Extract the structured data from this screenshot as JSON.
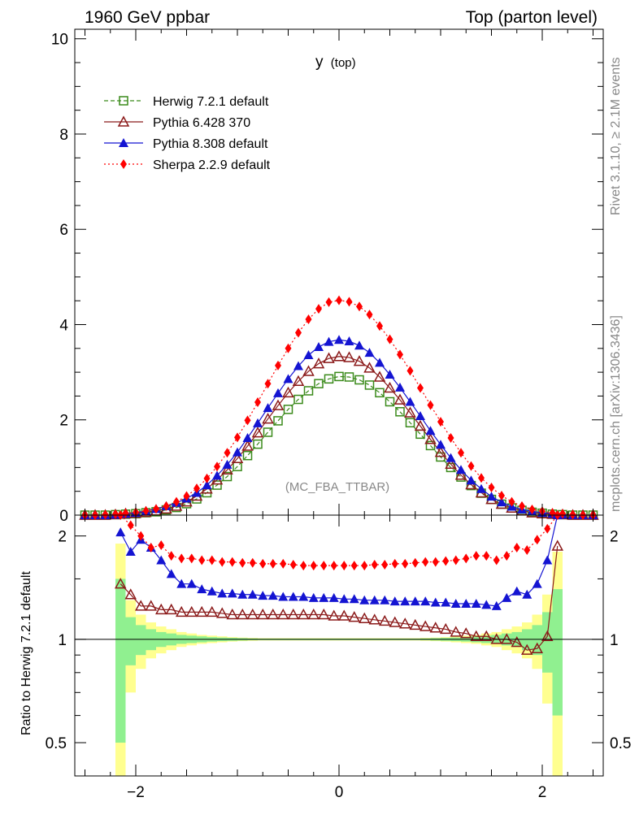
{
  "header": {
    "left": "1960 GeV ppbar",
    "right": "Top (parton level)"
  },
  "side_labels": {
    "rivet": "Rivet 3.1.10, ≥ 2.1M events",
    "mcplots": "mcplots.cern.ch [arXiv:1306.3436]"
  },
  "plot_title": {
    "main": "y",
    "sub": "(top)"
  },
  "analysis_label": "(MC_FBA_TTBAR)",
  "ratio_ylabel": "Ratio to Herwig 7.2.1 default",
  "chart_data": [
    {
      "type": "line",
      "panel": "main",
      "title": "y (top)",
      "xlim": [
        -2.6,
        2.6
      ],
      "ylim": [
        0,
        10.2
      ],
      "xticks": [
        -2,
        0,
        2
      ],
      "yticks": [
        0,
        2,
        4,
        6,
        8,
        10
      ],
      "ytick_labels": [
        "0",
        "2",
        "4",
        "6",
        "8",
        "10"
      ],
      "legend_position": "top-left",
      "x": [
        -2.5,
        -2.4,
        -2.3,
        -2.2,
        -2.1,
        -2.0,
        -1.9,
        -1.8,
        -1.7,
        -1.6,
        -1.5,
        -1.4,
        -1.3,
        -1.2,
        -1.1,
        -1.0,
        -0.9,
        -0.8,
        -0.7,
        -0.6,
        -0.5,
        -0.4,
        -0.3,
        -0.2,
        -0.1,
        0.0,
        0.1,
        0.2,
        0.3,
        0.4,
        0.5,
        0.6,
        0.7,
        0.8,
        0.9,
        1.0,
        1.1,
        1.2,
        1.3,
        1.4,
        1.5,
        1.6,
        1.7,
        1.8,
        1.9,
        2.0,
        2.1,
        2.2,
        2.3,
        2.4,
        2.5
      ],
      "series": [
        {
          "name": "Herwig 7.2.1 default",
          "color": "#3a8a1a",
          "marker": "open-square",
          "dash": "5,3",
          "values": [
            0.0,
            0.0,
            0.0,
            0.01,
            0.02,
            0.03,
            0.05,
            0.07,
            0.11,
            0.16,
            0.24,
            0.34,
            0.47,
            0.63,
            0.81,
            1.02,
            1.25,
            1.49,
            1.74,
            1.98,
            2.22,
            2.43,
            2.61,
            2.76,
            2.86,
            2.91,
            2.9,
            2.84,
            2.73,
            2.57,
            2.38,
            2.17,
            1.94,
            1.7,
            1.46,
            1.22,
            1.0,
            0.8,
            0.62,
            0.46,
            0.33,
            0.23,
            0.15,
            0.1,
            0.06,
            0.04,
            0.02,
            0.01,
            0.0,
            0.0,
            0.0
          ]
        },
        {
          "name": "Pythia 6.428 370",
          "color": "#8b1a1a",
          "marker": "open-triangle",
          "dash": "",
          "values": [
            0.0,
            0.0,
            0.0,
            0.01,
            0.03,
            0.04,
            0.06,
            0.09,
            0.13,
            0.19,
            0.28,
            0.4,
            0.55,
            0.74,
            0.95,
            1.19,
            1.45,
            1.73,
            2.02,
            2.3,
            2.57,
            2.81,
            3.02,
            3.18,
            3.29,
            3.33,
            3.31,
            3.23,
            3.09,
            2.9,
            2.67,
            2.42,
            2.15,
            1.87,
            1.59,
            1.32,
            1.07,
            0.84,
            0.64,
            0.47,
            0.33,
            0.23,
            0.15,
            0.09,
            0.05,
            0.03,
            0.02,
            0.01,
            0.0,
            0.0,
            0.0
          ]
        },
        {
          "name": "Pythia 8.308 default",
          "color": "#1414d2",
          "marker": "filled-triangle",
          "dash": "",
          "values": [
            0.0,
            0.0,
            0.0,
            0.01,
            0.03,
            0.05,
            0.09,
            0.13,
            0.19,
            0.26,
            0.35,
            0.47,
            0.63,
            0.83,
            1.06,
            1.32,
            1.62,
            1.93,
            2.25,
            2.56,
            2.86,
            3.13,
            3.36,
            3.53,
            3.64,
            3.68,
            3.65,
            3.56,
            3.41,
            3.2,
            2.95,
            2.68,
            2.38,
            2.08,
            1.77,
            1.48,
            1.2,
            0.95,
            0.73,
            0.55,
            0.39,
            0.27,
            0.18,
            0.12,
            0.08,
            0.05,
            0.03,
            0.01,
            0.0,
            0.0,
            0.0
          ]
        },
        {
          "name": "Sherpa 2.2.9 default",
          "color": "#ff0000",
          "marker": "filled-diamond",
          "dash": "2,3",
          "values": [
            0.0,
            0.0,
            0.01,
            0.02,
            0.04,
            0.06,
            0.09,
            0.13,
            0.19,
            0.28,
            0.4,
            0.56,
            0.77,
            1.02,
            1.31,
            1.63,
            1.99,
            2.37,
            2.76,
            3.14,
            3.5,
            3.83,
            4.11,
            4.33,
            4.47,
            4.51,
            4.48,
            4.38,
            4.21,
            3.97,
            3.69,
            3.37,
            3.03,
            2.67,
            2.31,
            1.96,
            1.62,
            1.31,
            1.03,
            0.78,
            0.58,
            0.41,
            0.28,
            0.19,
            0.12,
            0.08,
            0.05,
            0.03,
            0.01,
            0.0,
            0.0
          ]
        }
      ]
    },
    {
      "type": "line",
      "panel": "ratio",
      "ylabel": "Ratio to Herwig 7.2.1 default",
      "xlim": [
        -2.6,
        2.6
      ],
      "ylim": [
        0.4,
        2.3
      ],
      "yscale": "log",
      "xticks": [
        -2,
        0,
        2
      ],
      "xtick_labels": [
        "−2",
        "0",
        "2"
      ],
      "yticks": [
        0.5,
        1,
        2
      ],
      "ytick_labels": [
        "0.5",
        "1",
        "2"
      ],
      "reference_line": 1,
      "x": [
        -2.15,
        -2.05,
        -1.95,
        -1.85,
        -1.75,
        -1.65,
        -1.55,
        -1.45,
        -1.35,
        -1.25,
        -1.15,
        -1.05,
        -0.95,
        -0.85,
        -0.75,
        -0.65,
        -0.55,
        -0.45,
        -0.35,
        -0.25,
        -0.15,
        -0.05,
        0.05,
        0.15,
        0.25,
        0.35,
        0.45,
        0.55,
        0.65,
        0.75,
        0.85,
        0.95,
        1.05,
        1.15,
        1.25,
        1.35,
        1.45,
        1.55,
        1.65,
        1.75,
        1.85,
        1.95,
        2.05,
        2.15
      ],
      "series": [
        {
          "name": "Pythia 6.428 370",
          "color": "#8b1a1a",
          "marker": "open-triangle",
          "values": [
            1.45,
            1.35,
            1.25,
            1.25,
            1.22,
            1.22,
            1.2,
            1.2,
            1.2,
            1.2,
            1.19,
            1.18,
            1.18,
            1.18,
            1.18,
            1.18,
            1.18,
            1.18,
            1.18,
            1.18,
            1.18,
            1.17,
            1.17,
            1.16,
            1.15,
            1.14,
            1.13,
            1.12,
            1.11,
            1.1,
            1.09,
            1.08,
            1.07,
            1.05,
            1.04,
            1.02,
            1.02,
            1.0,
            1.0,
            0.98,
            0.93,
            0.94,
            1.02,
            1.87
          ]
        },
        {
          "name": "Pythia 8.308 default",
          "color": "#1414d2",
          "marker": "filled-triangle",
          "values": [
            2.05,
            1.8,
            1.95,
            1.85,
            1.7,
            1.55,
            1.45,
            1.45,
            1.4,
            1.38,
            1.36,
            1.36,
            1.35,
            1.35,
            1.34,
            1.34,
            1.33,
            1.33,
            1.33,
            1.32,
            1.32,
            1.32,
            1.31,
            1.31,
            1.3,
            1.3,
            1.3,
            1.29,
            1.29,
            1.29,
            1.29,
            1.28,
            1.28,
            1.27,
            1.27,
            1.27,
            1.26,
            1.25,
            1.32,
            1.38,
            1.35,
            1.45,
            1.7,
            2.3
          ]
        },
        {
          "name": "Sherpa 2.2.9 default",
          "color": "#ff0000",
          "marker": "filled-diamond",
          "values": [
            2.3,
            2.15,
            2.0,
            1.85,
            1.88,
            1.75,
            1.72,
            1.72,
            1.7,
            1.7,
            1.68,
            1.68,
            1.67,
            1.67,
            1.66,
            1.66,
            1.66,
            1.65,
            1.64,
            1.64,
            1.64,
            1.64,
            1.64,
            1.64,
            1.64,
            1.65,
            1.65,
            1.66,
            1.66,
            1.67,
            1.68,
            1.68,
            1.69,
            1.7,
            1.72,
            1.75,
            1.75,
            1.7,
            1.75,
            1.85,
            1.82,
            1.95,
            2.1,
            2.3
          ]
        }
      ],
      "uncertainty_bands": {
        "x_edges": [
          -2.2,
          -2.1,
          -2.0,
          -1.9,
          -1.8,
          -1.7,
          -1.6,
          -1.5,
          -1.4,
          -1.3,
          -1.2,
          -1.1,
          -1.0,
          -0.9,
          -0.8,
          0.8,
          0.9,
          1.0,
          1.1,
          1.2,
          1.3,
          1.4,
          1.5,
          1.6,
          1.7,
          1.8,
          1.9,
          2.0,
          2.1,
          2.2
        ],
        "green_half_widths": [
          0.5,
          0.16,
          0.1,
          0.07,
          0.05,
          0.04,
          0.03,
          0.025,
          0.02,
          0.015,
          0.012,
          0.01,
          0.008,
          0.006,
          0.005,
          0.006,
          0.008,
          0.01,
          0.012,
          0.015,
          0.02,
          0.025,
          0.03,
          0.04,
          0.05,
          0.07,
          0.1,
          0.2,
          0.4
        ],
        "yellow_half_widths": [
          0.9,
          0.3,
          0.18,
          0.12,
          0.09,
          0.07,
          0.05,
          0.04,
          0.03,
          0.025,
          0.02,
          0.015,
          0.012,
          0.01,
          0.008,
          0.01,
          0.012,
          0.015,
          0.02,
          0.025,
          0.03,
          0.04,
          0.05,
          0.07,
          0.09,
          0.12,
          0.18,
          0.35,
          0.8
        ],
        "green_color": "#90f090",
        "yellow_color": "#ffff90"
      }
    }
  ]
}
